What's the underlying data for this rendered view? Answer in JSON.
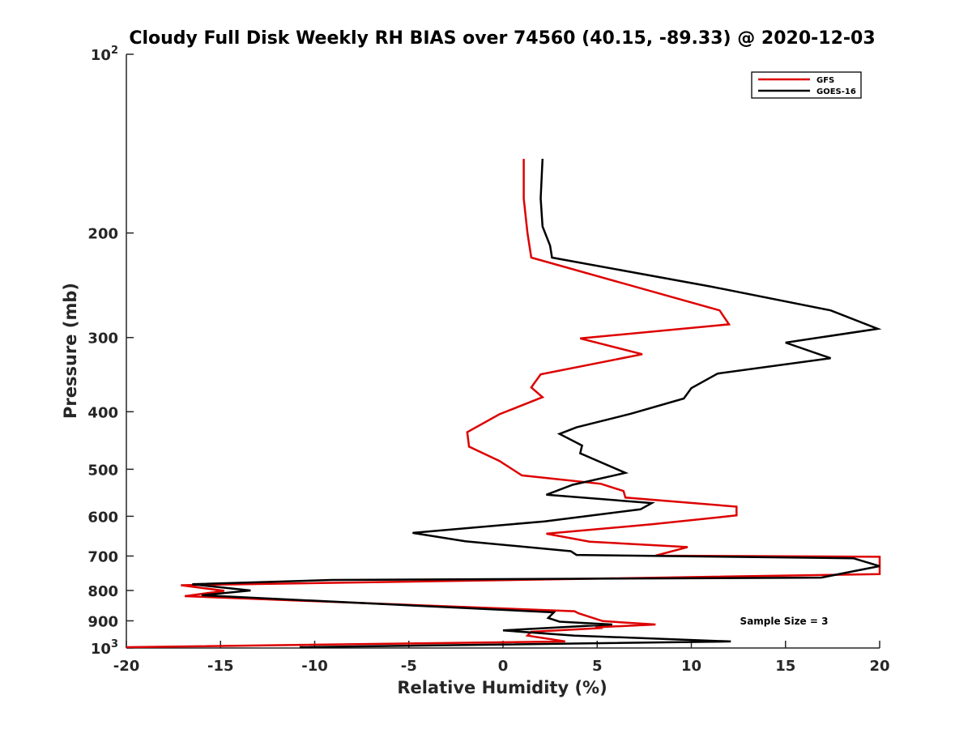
{
  "chart_data": {
    "type": "line",
    "title": "Cloudy Full Disk Weekly RH BIAS over 74560 (40.15, -89.33) @ 2020-12-03",
    "xlabel": "Relative Humidity (%)",
    "ylabel": "Pressure (mb)",
    "xlim": [
      -20,
      20
    ],
    "ylim": [
      100,
      1000
    ],
    "y_scale": "log",
    "y_reversed": true,
    "grid": false,
    "legend_position": "top-right",
    "x_ticks": [
      -20,
      -15,
      -10,
      -5,
      0,
      5,
      10,
      15,
      20
    ],
    "x_tick_labels": [
      "-20",
      "-15",
      "-10",
      "-5",
      "0",
      "5",
      "10",
      "15",
      "20"
    ],
    "y_ticks": [
      100,
      200,
      300,
      400,
      500,
      600,
      700,
      800,
      900,
      1000
    ],
    "y_tick_labels": [
      {
        "base": "10",
        "exp": "2"
      },
      {
        "base": "200",
        "exp": ""
      },
      {
        "base": "300",
        "exp": ""
      },
      {
        "base": "400",
        "exp": ""
      },
      {
        "base": "500",
        "exp": ""
      },
      {
        "base": "600",
        "exp": ""
      },
      {
        "base": "700",
        "exp": ""
      },
      {
        "base": "800",
        "exp": ""
      },
      {
        "base": "900",
        "exp": ""
      },
      {
        "base": "10",
        "exp": "3"
      }
    ],
    "annotation": "Sample Size = 3",
    "series": [
      {
        "name": "GFS",
        "color": "#dd0000",
        "points": [
          [
            1.1,
            150
          ],
          [
            1.1,
            175
          ],
          [
            1.3,
            200
          ],
          [
            1.5,
            220
          ],
          [
            11.5,
            270
          ],
          [
            12.0,
            285
          ],
          [
            4.1,
            301
          ],
          [
            7.4,
            320
          ],
          [
            2.0,
            346
          ],
          [
            1.5,
            364
          ],
          [
            2.1,
            378
          ],
          [
            -0.2,
            404
          ],
          [
            -1.9,
            433
          ],
          [
            -1.8,
            458
          ],
          [
            -0.2,
            484
          ],
          [
            1.0,
            512
          ],
          [
            5.2,
            529
          ],
          [
            6.4,
            544
          ],
          [
            6.5,
            558
          ],
          [
            12.4,
            578
          ],
          [
            12.4,
            598
          ],
          [
            7.9,
            619
          ],
          [
            2.3,
            642
          ],
          [
            4.6,
            662
          ],
          [
            9.8,
            676
          ],
          [
            8.1,
            699
          ],
          [
            20.0,
            702
          ],
          [
            20.0,
            751
          ],
          [
            -17.1,
            784
          ],
          [
            -14.8,
            801
          ],
          [
            -16.9,
            818
          ],
          [
            3.8,
            867
          ],
          [
            4.0,
            874
          ],
          [
            5.3,
            901
          ],
          [
            8.1,
            913
          ],
          [
            4.9,
            923
          ],
          [
            5.3,
            925
          ],
          [
            1.5,
            939
          ],
          [
            1.3,
            953
          ],
          [
            3.3,
            975
          ],
          [
            -20.0,
            997
          ]
        ]
      },
      {
        "name": "GOES-16",
        "color": "#000000",
        "points": [
          [
            2.1,
            150
          ],
          [
            2.0,
            175
          ],
          [
            2.1,
            195
          ],
          [
            2.5,
            210
          ],
          [
            2.6,
            220
          ],
          [
            11.0,
            246
          ],
          [
            17.4,
            270
          ],
          [
            19.9,
            290
          ],
          [
            15.0,
            306
          ],
          [
            17.4,
            325
          ],
          [
            11.4,
            345
          ],
          [
            10.0,
            365
          ],
          [
            9.6,
            380
          ],
          [
            6.8,
            403
          ],
          [
            3.9,
            425
          ],
          [
            3.0,
            436
          ],
          [
            4.2,
            456
          ],
          [
            4.1,
            470
          ],
          [
            6.5,
            507
          ],
          [
            3.7,
            531
          ],
          [
            2.3,
            552
          ],
          [
            7.9,
            570
          ],
          [
            7.3,
            584
          ],
          [
            2.2,
            612
          ],
          [
            -4.8,
            640
          ],
          [
            -2.0,
            661
          ],
          [
            3.6,
            687
          ],
          [
            3.9,
            697
          ],
          [
            18.6,
            706
          ],
          [
            20.0,
            728
          ],
          [
            16.9,
            761
          ],
          [
            -9.1,
            768
          ],
          [
            -16.5,
            781
          ],
          [
            -13.4,
            800
          ],
          [
            -16.0,
            815
          ],
          [
            2.7,
            871
          ],
          [
            2.4,
            890
          ],
          [
            3.0,
            903
          ],
          [
            5.8,
            913
          ],
          [
            0.0,
            934
          ],
          [
            3.8,
            953
          ],
          [
            12.1,
            975
          ],
          [
            -10.8,
            997
          ]
        ]
      }
    ]
  }
}
